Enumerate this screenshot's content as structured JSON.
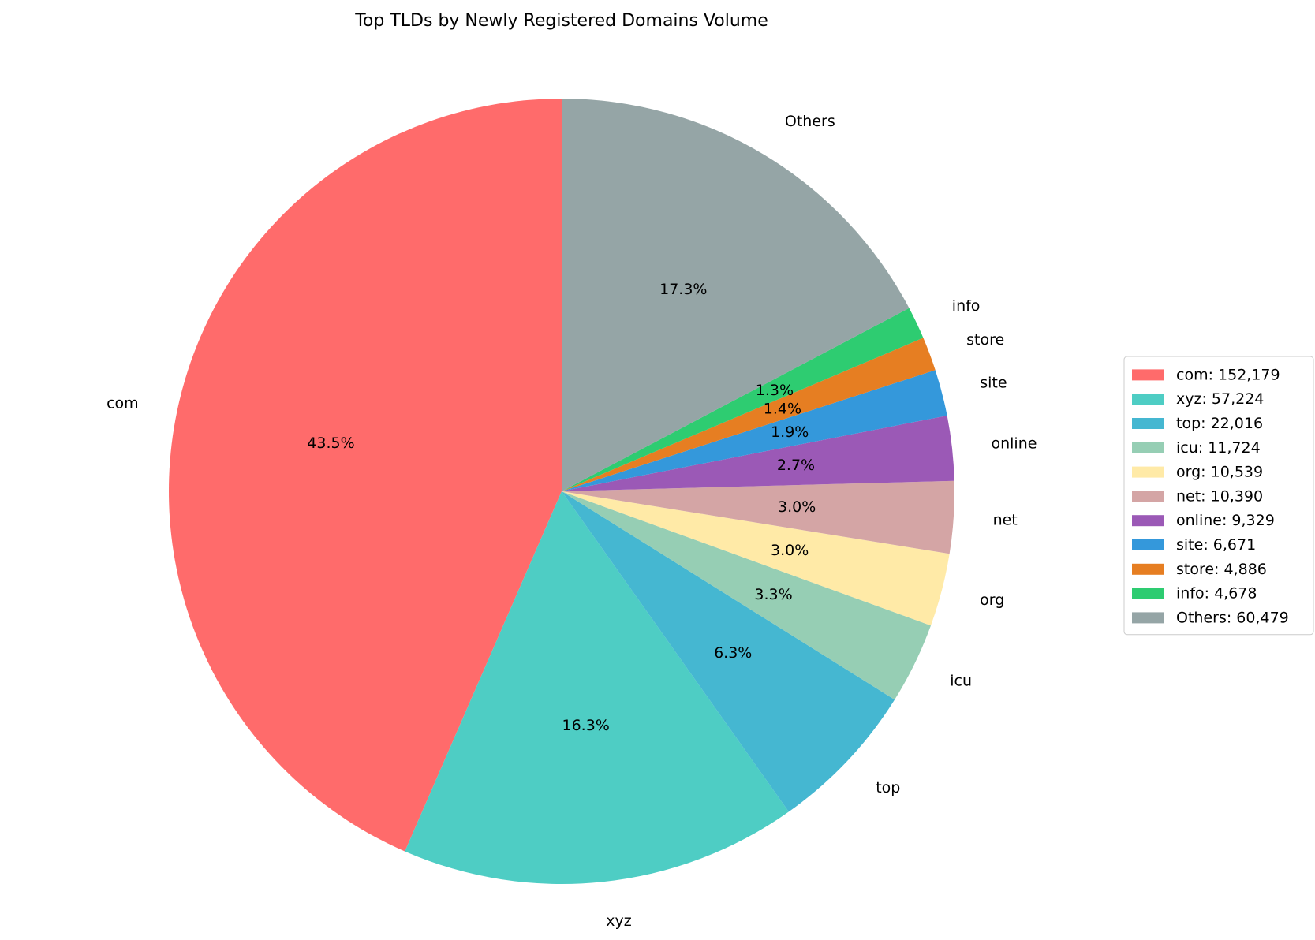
{
  "chart_data": {
    "type": "pie",
    "title": "Top TLDs by Newly Registered Domains Volume",
    "start_angle_deg": 90,
    "direction": "counterclockwise",
    "legend_position": "right",
    "slices": [
      {
        "label": "com",
        "value": 152179,
        "legend": "com: 152,179",
        "pct_label": "43.5%",
        "color": "#FF6B6B"
      },
      {
        "label": "xyz",
        "value": 57224,
        "legend": "xyz: 57,224",
        "pct_label": "16.3%",
        "color": "#4ECDC4"
      },
      {
        "label": "top",
        "value": 22016,
        "legend": "top: 22,016",
        "pct_label": "6.3%",
        "color": "#45B7D1"
      },
      {
        "label": "icu",
        "value": 11724,
        "legend": "icu: 11,724",
        "pct_label": "3.3%",
        "color": "#96CEB4"
      },
      {
        "label": "org",
        "value": 10539,
        "legend": "org: 10,539",
        "pct_label": "3.0%",
        "color": "#FFEAA7"
      },
      {
        "label": "net",
        "value": 10390,
        "legend": "net: 10,390",
        "pct_label": "3.0%",
        "color": "#D4A5A5"
      },
      {
        "label": "online",
        "value": 9329,
        "legend": "online: 9,329",
        "pct_label": "2.7%",
        "color": "#9B59B6"
      },
      {
        "label": "site",
        "value": 6671,
        "legend": "site: 6,671",
        "pct_label": "1.9%",
        "color": "#3498DB"
      },
      {
        "label": "store",
        "value": 4886,
        "legend": "store: 4,886",
        "pct_label": "1.4%",
        "color": "#E67E22"
      },
      {
        "label": "info",
        "value": 4678,
        "legend": "info: 4,678",
        "pct_label": "1.3%",
        "color": "#2ECC71"
      },
      {
        "label": "Others",
        "value": 60479,
        "legend": "Others: 60,479",
        "pct_label": "17.3%",
        "color": "#95A5A6"
      }
    ]
  }
}
